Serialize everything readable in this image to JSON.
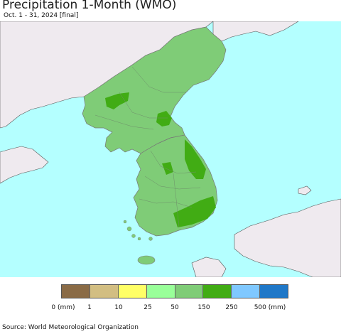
{
  "header": {
    "title": "Precipitation 1-Month (WMO)",
    "subtitle": "Oct. 1 - 31, 2024 [final]"
  },
  "map": {
    "colors": {
      "sea": "#b4ffff",
      "land_outside": "#efeaef",
      "band_50_150": "#7fcc77",
      "band_150_250": "#41ac14",
      "borders": "#777777"
    }
  },
  "legend": {
    "colors": [
      "#8a6b46",
      "#d2be82",
      "#ffff66",
      "#99ff99",
      "#7fcc77",
      "#41ac14",
      "#7fc8ff",
      "#1f78c8"
    ],
    "labels": [
      "0 (mm)",
      "1",
      "10",
      "25",
      "50",
      "150",
      "250",
      "500 (mm)"
    ]
  },
  "footer": {
    "source": "Source: World Meteorological Organization"
  }
}
